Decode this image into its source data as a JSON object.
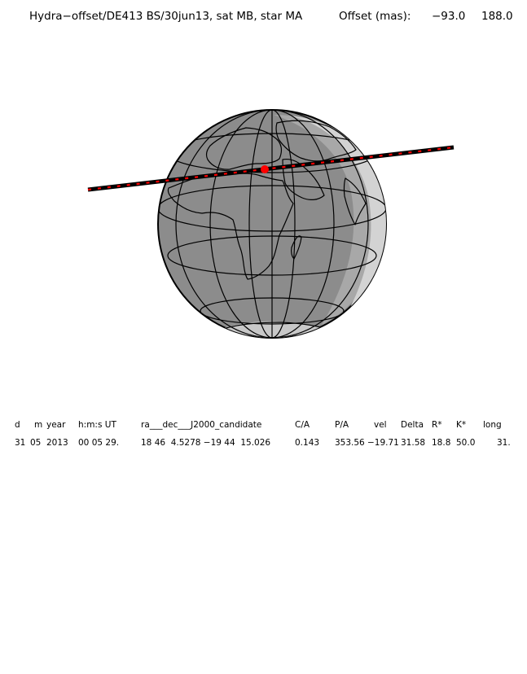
{
  "title": {
    "main": "Hydra−offset/DE413 BS/30jun13, sat MB, star MA",
    "offset_label": "Offset (mas):",
    "offset_x": "−93.0",
    "offset_y": "188.0"
  },
  "colors": {
    "land_outline": "#000000",
    "day": "#d3d3d3",
    "twilight": "#a8a8a8",
    "night": "#8c8c8c",
    "shadow_path": "#000000",
    "path_ticks": "#ff0000",
    "center_point": "#ff0000"
  },
  "map": {
    "projection": "orthographic globe",
    "grid": "meridians and parallels",
    "highlighted_feature": "occultation shadow path across Africa"
  },
  "table": {
    "headers": [
      "d",
      "m",
      "year",
      "h:m:s UT",
      "ra___dec___J2000_candidate",
      "C/A",
      "P/A",
      "vel",
      "Delta",
      "R*",
      "K*",
      "long"
    ],
    "values": [
      "31",
      "05",
      "2013",
      "00 05 29.",
      "18 46  4.5278 −19 44  15.026",
      "0.143",
      "353.56",
      "−19.71",
      "31.58",
      "18.8",
      "50.0",
      "31."
    ]
  }
}
